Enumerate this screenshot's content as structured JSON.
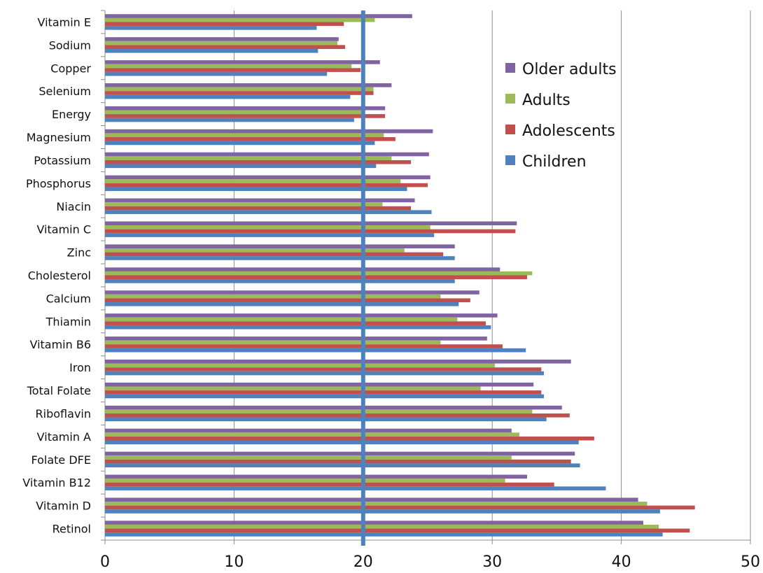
{
  "chart_data": {
    "type": "bar",
    "orientation": "horizontal",
    "categories": [
      "Vitamin E",
      "Sodium",
      "Copper",
      "Selenium",
      "Energy",
      "Magnesium",
      "Potassium",
      "Phosphorus",
      "Niacin",
      "Vitamin C",
      "Zinc",
      "Cholesterol",
      "Calcium",
      "Thiamin",
      "Vitamin B6",
      "Iron",
      "Total Folate",
      "Riboflavin",
      "Vitamin A",
      "Folate DFE",
      "Vitamin B12",
      "Vitamin D",
      "Retinol"
    ],
    "series": [
      {
        "name": "Older adults",
        "color": "#8064a2",
        "values": [
          23.8,
          18.1,
          21.3,
          22.2,
          21.7,
          25.4,
          25.1,
          25.2,
          24.0,
          31.9,
          27.1,
          30.6,
          29.0,
          30.4,
          29.6,
          36.1,
          33.2,
          35.4,
          31.5,
          36.4,
          32.7,
          41.3,
          41.7
        ]
      },
      {
        "name": "Adults",
        "color": "#9bbb59",
        "values": [
          20.9,
          18.0,
          19.1,
          20.8,
          20.0,
          21.6,
          22.2,
          22.9,
          21.5,
          25.2,
          23.2,
          33.1,
          26.0,
          27.3,
          26.0,
          30.2,
          29.1,
          33.1,
          32.1,
          31.5,
          31.0,
          42.0,
          42.9
        ]
      },
      {
        "name": "Adolescents",
        "color": "#c0504d",
        "values": [
          18.5,
          18.6,
          19.8,
          20.8,
          21.7,
          22.5,
          23.7,
          25.0,
          23.7,
          31.8,
          26.2,
          32.7,
          28.3,
          29.5,
          30.8,
          33.8,
          33.8,
          36.0,
          37.9,
          36.1,
          34.8,
          45.7,
          45.3
        ]
      },
      {
        "name": "Children",
        "color": "#4f81bd",
        "values": [
          16.4,
          16.5,
          17.2,
          19.0,
          19.3,
          20.9,
          21.0,
          23.4,
          25.3,
          25.5,
          27.1,
          27.1,
          27.4,
          29.9,
          32.6,
          34.0,
          34.0,
          34.2,
          36.7,
          36.8,
          38.8,
          43.0,
          43.2
        ]
      }
    ],
    "legend_order": [
      "Older adults",
      "Adults",
      "Adolescents",
      "Children"
    ],
    "xticks": [
      0,
      10,
      20,
      30,
      40,
      50
    ],
    "xlim": [
      0,
      50
    ],
    "reference_line": {
      "value": 20,
      "color": "#4f81bd"
    },
    "grid": "vertical",
    "legend_position": "top-right",
    "title": "",
    "xlabel": "",
    "ylabel": ""
  }
}
